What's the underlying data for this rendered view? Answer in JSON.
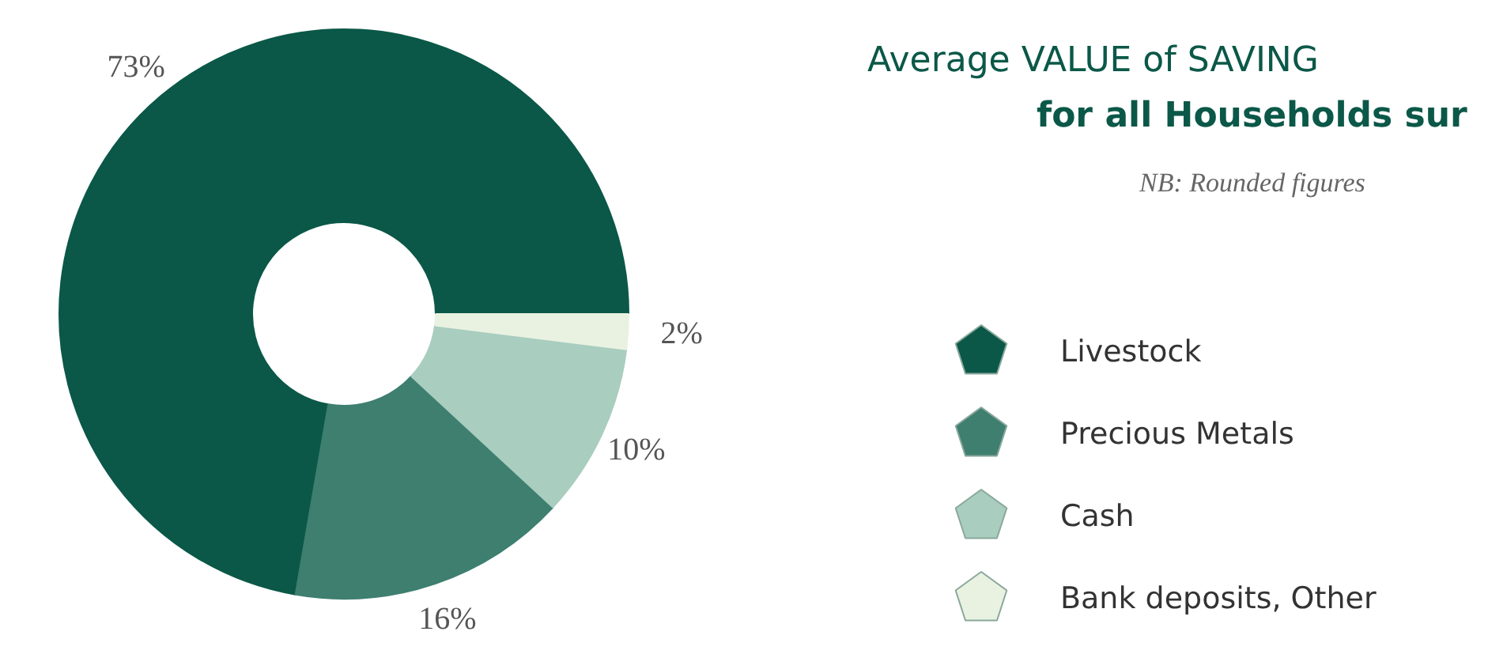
{
  "chart_data": {
    "type": "donut",
    "title": "Average VALUE of SAVING",
    "subtitle": "for all Households sur",
    "annotations": [
      "NB: Rounded figures"
    ],
    "categories": [
      "Livestock",
      "Precious Metals",
      "Cash",
      "Bank deposits, Other"
    ],
    "values": [
      73,
      16,
      10,
      2
    ],
    "colors": [
      "#0b5848",
      "#3e7f70",
      "#a9cdbf",
      "#e9f2e1"
    ],
    "value_labels": [
      "73%",
      "16%",
      "10%",
      "2%"
    ],
    "legend": "right"
  }
}
